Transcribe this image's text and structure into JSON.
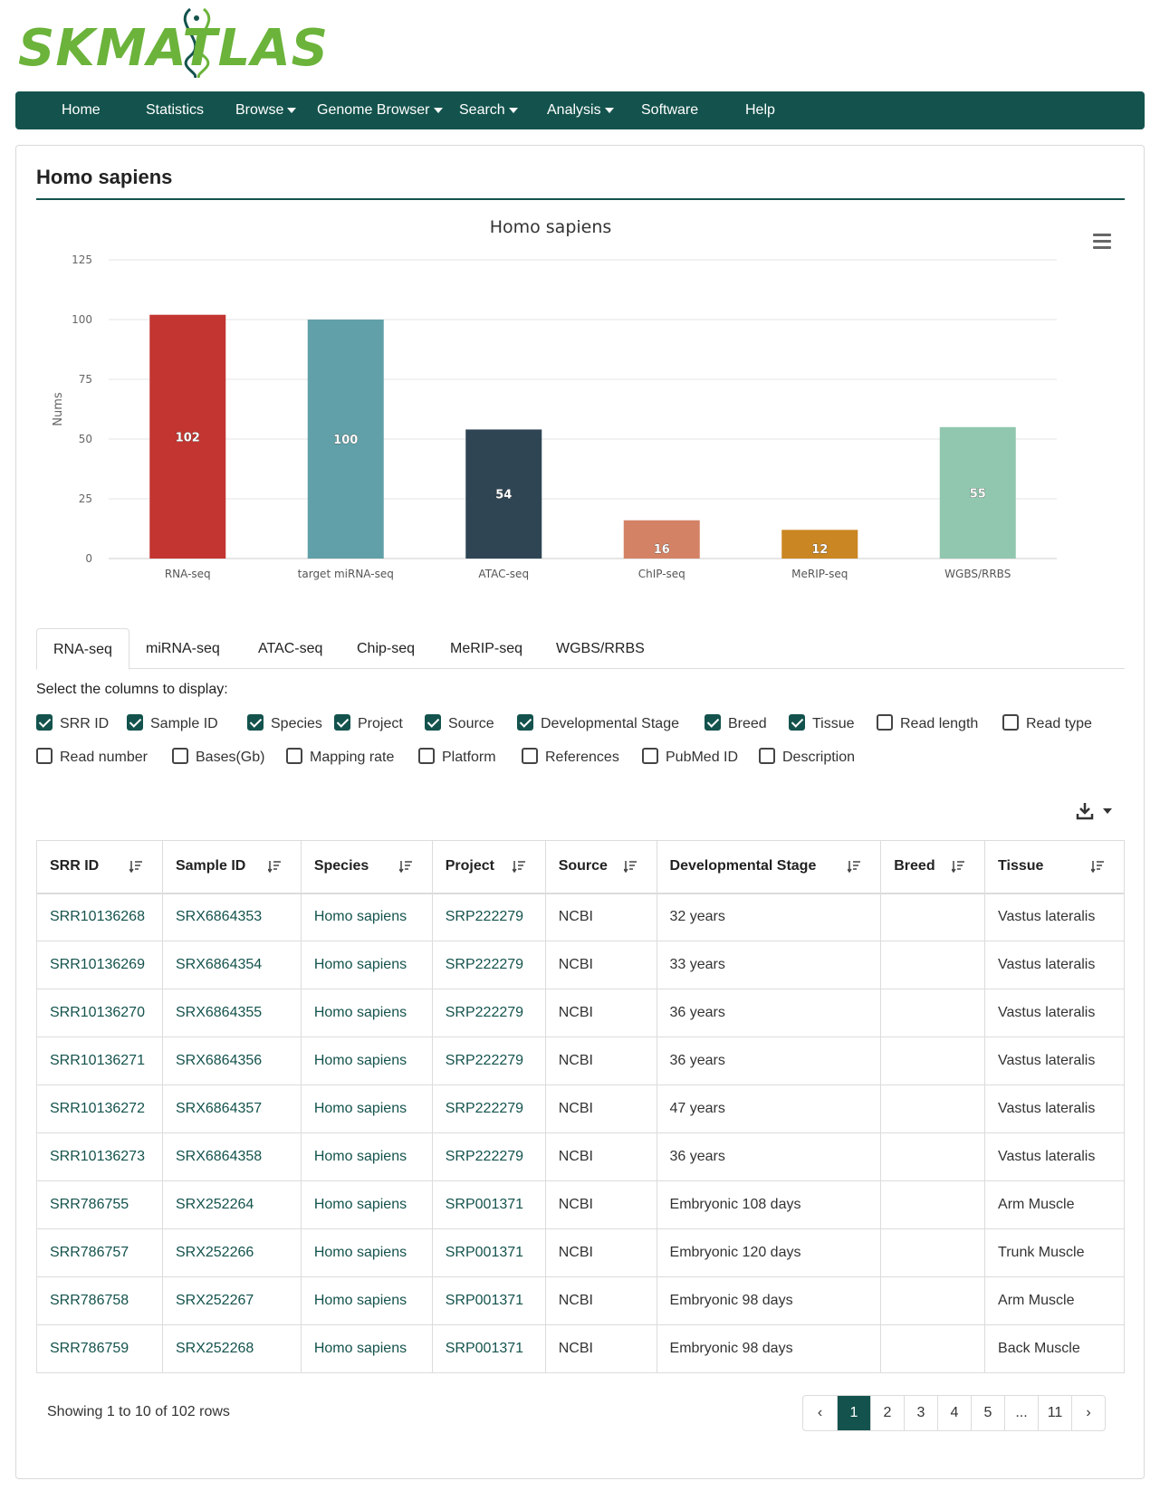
{
  "logo": {
    "text": "SKMATLAS"
  },
  "nav": {
    "items": [
      {
        "label": "Home",
        "dropdown": false
      },
      {
        "label": "Statistics",
        "dropdown": false
      },
      {
        "label": "Browse",
        "dropdown": true
      },
      {
        "label": "Genome Browser",
        "dropdown": true
      },
      {
        "label": "Search",
        "dropdown": true
      },
      {
        "label": "Analysis",
        "dropdown": true
      },
      {
        "label": "Software",
        "dropdown": false
      },
      {
        "label": "Help",
        "dropdown": false
      }
    ]
  },
  "panel": {
    "title": "Homo sapiens"
  },
  "chart_data": {
    "type": "bar",
    "title": "Homo sapiens",
    "xlabel": "",
    "ylabel": "Nums",
    "ylim": [
      0,
      125
    ],
    "yticks": [
      0,
      25,
      50,
      75,
      100,
      125
    ],
    "grid": true,
    "categories": [
      "RNA-seq",
      "target miRNA-seq",
      "ATAC-seq",
      "ChIP-seq",
      "MeRIP-seq",
      "WGBS/RRBS"
    ],
    "values": [
      102,
      100,
      54,
      16,
      12,
      55
    ],
    "colors": [
      "#c23531",
      "#61a0a8",
      "#2f4554",
      "#d48265",
      "#ca8622",
      "#91c7ae"
    ]
  },
  "tabs": [
    "RNA-seq",
    "miRNA-seq",
    "ATAC-seq",
    "Chip-seq",
    "MeRIP-seq",
    "WGBS/RRBS"
  ],
  "columns_select": {
    "label": "Select the columns to display:",
    "options": [
      {
        "label": "SRR ID",
        "checked": true
      },
      {
        "label": "Sample ID",
        "checked": true
      },
      {
        "label": "Species",
        "checked": true
      },
      {
        "label": "Project",
        "checked": true
      },
      {
        "label": "Source",
        "checked": true
      },
      {
        "label": "Developmental Stage",
        "checked": true
      },
      {
        "label": "Breed",
        "checked": true
      },
      {
        "label": "Tissue",
        "checked": true
      },
      {
        "label": "Read length",
        "checked": false
      },
      {
        "label": "Read type",
        "checked": false
      },
      {
        "label": "Read number",
        "checked": false
      },
      {
        "label": "Bases(Gb)",
        "checked": false
      },
      {
        "label": "Mapping rate",
        "checked": false
      },
      {
        "label": "Platform",
        "checked": false
      },
      {
        "label": "References",
        "checked": false
      },
      {
        "label": "PubMed ID",
        "checked": false
      },
      {
        "label": "Description",
        "checked": false
      }
    ]
  },
  "table": {
    "headers": [
      "SRR ID",
      "Sample ID",
      "Species",
      "Project",
      "Source",
      "Developmental Stage",
      "Breed",
      "Tissue"
    ],
    "rows": [
      [
        "SRR10136268",
        "SRX6864353",
        "Homo sapiens",
        "SRP222279",
        "NCBI",
        "32 years",
        "",
        "Vastus lateralis"
      ],
      [
        "SRR10136269",
        "SRX6864354",
        "Homo sapiens",
        "SRP222279",
        "NCBI",
        "33 years",
        "",
        "Vastus lateralis"
      ],
      [
        "SRR10136270",
        "SRX6864355",
        "Homo sapiens",
        "SRP222279",
        "NCBI",
        "36 years",
        "",
        "Vastus lateralis"
      ],
      [
        "SRR10136271",
        "SRX6864356",
        "Homo sapiens",
        "SRP222279",
        "NCBI",
        "36 years",
        "",
        "Vastus lateralis"
      ],
      [
        "SRR10136272",
        "SRX6864357",
        "Homo sapiens",
        "SRP222279",
        "NCBI",
        "47 years",
        "",
        "Vastus lateralis"
      ],
      [
        "SRR10136273",
        "SRX6864358",
        "Homo sapiens",
        "SRP222279",
        "NCBI",
        "36 years",
        "",
        "Vastus lateralis"
      ],
      [
        "SRR786755",
        "SRX252264",
        "Homo sapiens",
        "SRP001371",
        "NCBI",
        "Embryonic 108 days",
        "",
        "Arm Muscle"
      ],
      [
        "SRR786757",
        "SRX252266",
        "Homo sapiens",
        "SRP001371",
        "NCBI",
        "Embryonic 120 days",
        "",
        "Trunk Muscle"
      ],
      [
        "SRR786758",
        "SRX252267",
        "Homo sapiens",
        "SRP001371",
        "NCBI",
        "Embryonic 98 days",
        "",
        "Arm Muscle"
      ],
      [
        "SRR786759",
        "SRX252268",
        "Homo sapiens",
        "SRP001371",
        "NCBI",
        "Embryonic 98 days",
        "",
        "Back Muscle"
      ]
    ]
  },
  "footer": {
    "showing": "Showing 1 to 10 of 102 rows",
    "pages": [
      "‹",
      "1",
      "2",
      "3",
      "4",
      "5",
      "...",
      "11",
      "›"
    ],
    "active_page": "1"
  },
  "icons": {
    "menu": "hamburger-icon",
    "export": "download-icon",
    "sort": "sort-icon"
  }
}
